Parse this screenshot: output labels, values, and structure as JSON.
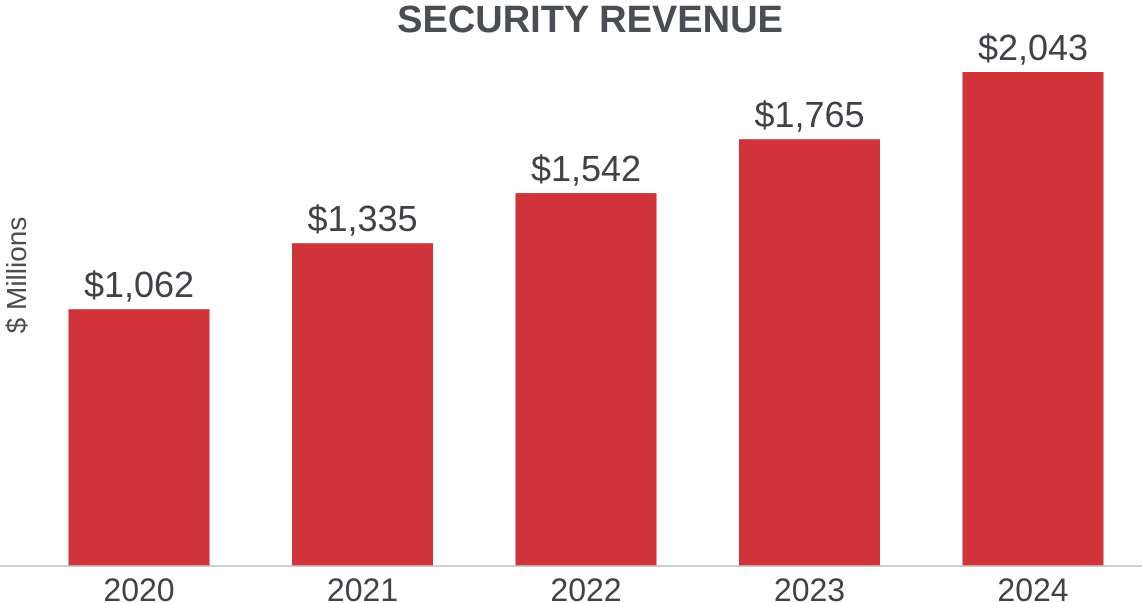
{
  "chart_data": {
    "type": "bar",
    "title": "SECURITY REVENUE",
    "xlabel": "",
    "ylabel": "$ Millions",
    "categories": [
      "2020",
      "2021",
      "2022",
      "2023",
      "2024"
    ],
    "values": [
      1062,
      1335,
      1542,
      1765,
      2043
    ],
    "data_labels": [
      "$1,062",
      "$1,335",
      "$1,542",
      "$1,765",
      "$2,043"
    ],
    "ylim": [
      0,
      2043
    ],
    "grid": false,
    "legend": "none"
  },
  "colors": {
    "bar": "#d1333a",
    "text": "#3f4246",
    "title": "#4a4d52",
    "axis": "#bfbfbf"
  }
}
